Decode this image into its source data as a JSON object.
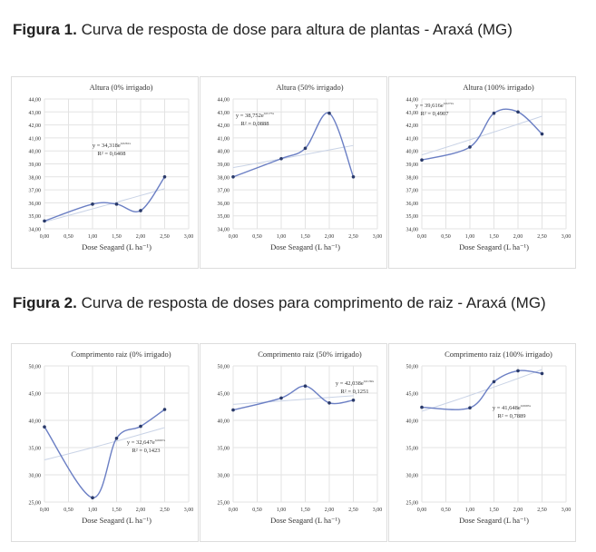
{
  "figure1": {
    "label": "Figura 1.",
    "caption": "Curva de resposta de dose para altura de plantas - Araxá (MG)"
  },
  "figure2": {
    "label": "Figura 2.",
    "caption": "Curva de resposta de doses para comprimento de raiz - Araxá (MG)"
  },
  "chart_data": [
    {
      "type": "line",
      "title": "Altura (0% irrigado)",
      "xlabel": "Dose Seagard (L ha⁻¹)",
      "xlim": [
        0,
        3
      ],
      "ylim": [
        34,
        44
      ],
      "ystep": 1,
      "x": [
        0,
        1,
        1.5,
        2,
        2.5
      ],
      "values": [
        34.6,
        35.9,
        35.9,
        35.4,
        38.0
      ],
      "equation": "y = 34,318e",
      "exponent": "0,0261x",
      "r2": "R² = 0,6408",
      "grid": true
    },
    {
      "type": "line",
      "title": "Altura (50% irrigado)",
      "xlabel": "Dose Seagard (L ha⁻¹)",
      "xlim": [
        0,
        3
      ],
      "ylim": [
        34,
        44
      ],
      "ystep": 1,
      "x": [
        0,
        1,
        1.5,
        2,
        2.5
      ],
      "values": [
        38.0,
        39.4,
        40.2,
        42.9,
        38.0
      ],
      "equation": "y = 38,752e",
      "exponent": "0,0175x",
      "r2": "R² = 0,0888",
      "grid": true
    },
    {
      "type": "line",
      "title": "Altura (100% irrigado)",
      "xlabel": "Dose Seagard (L ha⁻¹)",
      "xlim": [
        0,
        3
      ],
      "ylim": [
        34,
        44
      ],
      "ystep": 1,
      "x": [
        0,
        1,
        1.5,
        2,
        2.5
      ],
      "values": [
        39.3,
        40.3,
        42.9,
        43.0,
        41.3
      ],
      "equation": "y = 39,616e",
      "exponent": "0,0272x",
      "r2": "R² = 0,4907",
      "grid": true
    },
    {
      "type": "line",
      "title": "Comprimento raiz (0% irrigado)",
      "xlabel": "Dose Seagard (L ha⁻¹)",
      "xlim": [
        0,
        3
      ],
      "ylim": [
        25,
        50
      ],
      "ystep": 5,
      "x": [
        0,
        1,
        1.5,
        2,
        2.5
      ],
      "values": [
        38.8,
        25.8,
        36.7,
        38.9,
        42.0
      ],
      "equation": "y = 32,647e",
      "exponent": "0,0667x",
      "r2": "R² = 0,1423",
      "grid": true
    },
    {
      "type": "line",
      "title": "Comprimento raiz (50% irrigado)",
      "xlabel": "Dose Seagard (L ha⁻¹)",
      "xlim": [
        0,
        3
      ],
      "ylim": [
        25,
        50
      ],
      "ystep": 5,
      "x": [
        0,
        1,
        1.5,
        2,
        2.5
      ],
      "values": [
        41.9,
        44.1,
        46.3,
        43.2,
        43.7
      ],
      "equation": "y = 42,038e",
      "exponent": "0,0139x",
      "r2": "R² = 0,1251",
      "grid": true
    },
    {
      "type": "line",
      "title": "Comprimento raiz (100% irrigado)",
      "xlabel": "Dose Seagard (L ha⁻¹)",
      "xlim": [
        0,
        3
      ],
      "ylim": [
        25,
        50
      ],
      "ystep": 5,
      "x": [
        0,
        1,
        1.5,
        2,
        2.5
      ],
      "values": [
        42.4,
        42.3,
        47.1,
        49.1,
        48.6
      ],
      "equation": "y = 41,648e",
      "exponent": "0,0695x",
      "r2": "R² = 0,7889",
      "grid": true
    }
  ]
}
